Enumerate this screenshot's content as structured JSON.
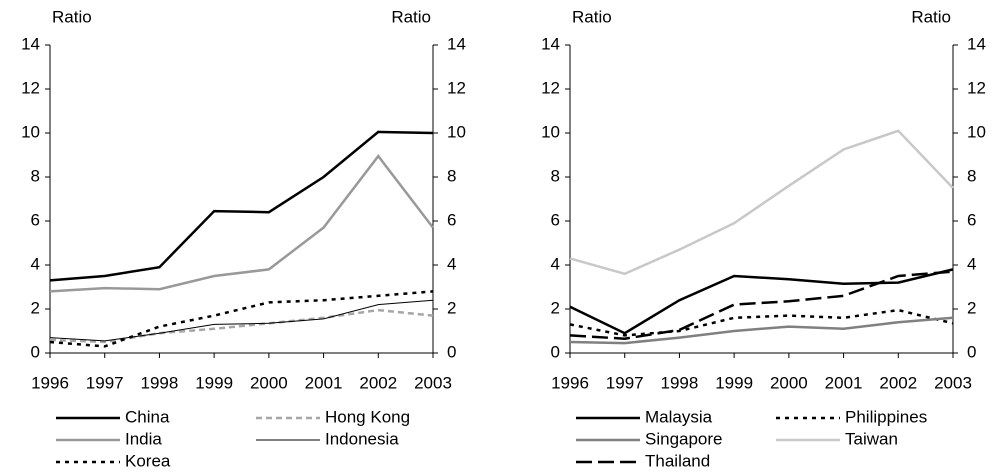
{
  "chart_data": [
    {
      "type": "line",
      "y_label": "Ratio",
      "y2_label": "Ratio",
      "categories": [
        "1996",
        "1997",
        "1998",
        "1999",
        "2000",
        "2001",
        "2002",
        "2003"
      ],
      "ylim": [
        0,
        14
      ],
      "yticks": [
        0,
        2,
        4,
        6,
        8,
        10,
        12,
        14
      ],
      "y2lim": [
        0,
        14
      ],
      "y2ticks": [
        0,
        2,
        4,
        6,
        8,
        10,
        12,
        14
      ],
      "series": [
        {
          "name": "China",
          "color": "#000000",
          "dash": "solid",
          "width": 2.5,
          "values": [
            3.3,
            3.5,
            3.9,
            6.45,
            6.4,
            8.0,
            10.05,
            10.0
          ]
        },
        {
          "name": "Hong Kong",
          "color": "#a6a6a6",
          "dash": "dashed",
          "width": 2.5,
          "values": [
            0.6,
            0.5,
            0.9,
            1.1,
            1.35,
            1.6,
            1.95,
            1.7
          ]
        },
        {
          "name": "India",
          "color": "#999999",
          "dash": "solid",
          "width": 2.5,
          "values": [
            2.8,
            2.95,
            2.9,
            3.5,
            3.8,
            5.7,
            8.95,
            5.7
          ]
        },
        {
          "name": "Indonesia",
          "color": "#000000",
          "dash": "solid",
          "width": 1,
          "values": [
            0.7,
            0.55,
            0.9,
            1.3,
            1.35,
            1.55,
            2.2,
            2.4
          ]
        },
        {
          "name": "Korea",
          "color": "#000000",
          "dash": "dotted",
          "width": 2.5,
          "values": [
            0.5,
            0.3,
            1.2,
            1.7,
            2.3,
            2.4,
            2.6,
            2.8
          ]
        }
      ]
    },
    {
      "type": "line",
      "y_label": "Ratio",
      "y2_label": "Ratio",
      "categories": [
        "1996",
        "1997",
        "1998",
        "1999",
        "2000",
        "2001",
        "2002",
        "2003"
      ],
      "ylim": [
        0,
        14
      ],
      "yticks": [
        0,
        2,
        4,
        6,
        8,
        10,
        12,
        14
      ],
      "y2lim": [
        0,
        14
      ],
      "y2ticks": [
        0,
        2,
        4,
        6,
        8,
        10,
        12,
        14
      ],
      "series": [
        {
          "name": "Malaysia",
          "color": "#000000",
          "dash": "solid",
          "width": 2.5,
          "values": [
            2.1,
            0.9,
            2.4,
            3.5,
            3.35,
            3.15,
            3.2,
            3.8
          ]
        },
        {
          "name": "Philippines",
          "color": "#000000",
          "dash": "dotted",
          "width": 2.5,
          "values": [
            1.3,
            0.8,
            1.0,
            1.6,
            1.7,
            1.6,
            1.95,
            1.35
          ]
        },
        {
          "name": "Singapore",
          "color": "#808080",
          "dash": "solid",
          "width": 2.5,
          "values": [
            0.5,
            0.45,
            0.7,
            1.0,
            1.2,
            1.1,
            1.4,
            1.6
          ]
        },
        {
          "name": "Taiwan",
          "color": "#c8c8c8",
          "dash": "solid",
          "width": 2.5,
          "values": [
            4.3,
            3.6,
            4.7,
            5.9,
            7.6,
            9.25,
            10.1,
            7.5
          ]
        },
        {
          "name": "Thailand",
          "color": "#000000",
          "dash": "longdash",
          "width": 2.5,
          "values": [
            0.8,
            0.65,
            1.05,
            2.2,
            2.35,
            2.6,
            3.5,
            3.7
          ]
        }
      ]
    }
  ]
}
